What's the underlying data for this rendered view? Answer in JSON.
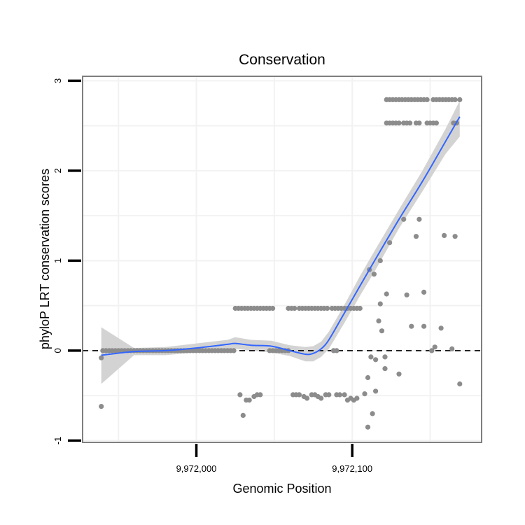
{
  "chart_data": {
    "type": "scatter",
    "title": "Conservation",
    "xlabel": "Genomic Position",
    "ylabel": "phyloP LRT conservation scores",
    "xlim": [
      9971927,
      9972183
    ],
    "ylim": [
      -1.02,
      3.05
    ],
    "x_ticks": [
      9972000,
      9972100
    ],
    "x_tick_labels": [
      "9,972,000",
      "9,972,100"
    ],
    "y_ticks": [
      -1,
      0,
      1,
      2,
      3
    ],
    "y_tick_labels": [
      "-1",
      "0",
      "1",
      "2",
      "3"
    ],
    "x_minor_grid": [
      9971950,
      9972050,
      9972150
    ],
    "y_minor_grid": [
      -0.5,
      0.5,
      1.5,
      2.5
    ],
    "grid": true,
    "reference_line": {
      "y": 0,
      "style": "dashed"
    },
    "colors": {
      "points": "#8c8c8c",
      "smooth_line": "#3366ff",
      "confidence_band": "#d3d3d3",
      "panel_border": "#7f7f7f",
      "grid": "#f2f2f2"
    },
    "points": [
      [
        9971939,
        -0.62
      ],
      [
        9971939,
        -0.08
      ],
      [
        9971940,
        0
      ],
      [
        9971942,
        0
      ],
      [
        9971944,
        0
      ],
      [
        9971946,
        0
      ],
      [
        9971948,
        0
      ],
      [
        9971950,
        0
      ],
      [
        9971952,
        0
      ],
      [
        9971954,
        0
      ],
      [
        9971956,
        0
      ],
      [
        9971958,
        0
      ],
      [
        9971960,
        0
      ],
      [
        9971962,
        0
      ],
      [
        9971964,
        0
      ],
      [
        9971966,
        0
      ],
      [
        9971968,
        0
      ],
      [
        9971970,
        0
      ],
      [
        9971972,
        0
      ],
      [
        9971974,
        0
      ],
      [
        9971976,
        0
      ],
      [
        9971978,
        0
      ],
      [
        9971980,
        0
      ],
      [
        9971982,
        0
      ],
      [
        9971984,
        0
      ],
      [
        9971986,
        0
      ],
      [
        9971988,
        0
      ],
      [
        9971990,
        0
      ],
      [
        9971992,
        0
      ],
      [
        9971994,
        0
      ],
      [
        9971996,
        0
      ],
      [
        9971998,
        0
      ],
      [
        9972000,
        0
      ],
      [
        9972002,
        0
      ],
      [
        9972004,
        0
      ],
      [
        9972006,
        0
      ],
      [
        9972008,
        0
      ],
      [
        9972010,
        0
      ],
      [
        9972012,
        0
      ],
      [
        9972014,
        0
      ],
      [
        9972016,
        0
      ],
      [
        9972018,
        0
      ],
      [
        9972020,
        0
      ],
      [
        9972022,
        0
      ],
      [
        9972024,
        0
      ],
      [
        9972025,
        0.47
      ],
      [
        9972027,
        0.47
      ],
      [
        9972029,
        0.47
      ],
      [
        9972031,
        0.47
      ],
      [
        9972033,
        0.47
      ],
      [
        9972035,
        0.47
      ],
      [
        9972037,
        0.47
      ],
      [
        9972039,
        0.47
      ],
      [
        9972041,
        0.47
      ],
      [
        9972043,
        0.47
      ],
      [
        9972045,
        0.47
      ],
      [
        9972047,
        0.47
      ],
      [
        9972049,
        0.47
      ],
      [
        9972028,
        -0.49
      ],
      [
        9972030,
        -0.72
      ],
      [
        9972032,
        -0.55
      ],
      [
        9972034,
        -0.55
      ],
      [
        9972037,
        -0.51
      ],
      [
        9972039,
        -0.49
      ],
      [
        9972041,
        -0.49
      ],
      [
        9972047,
        0
      ],
      [
        9972049,
        0
      ],
      [
        9972051,
        0
      ],
      [
        9972053,
        0
      ],
      [
        9972055,
        0
      ],
      [
        9972057,
        0
      ],
      [
        9972059,
        0
      ],
      [
        9972059,
        0.47
      ],
      [
        9972061,
        0.47
      ],
      [
        9972063,
        0.47
      ],
      [
        9972066,
        0.47
      ],
      [
        9972068,
        0.47
      ],
      [
        9972070,
        0.47
      ],
      [
        9972072,
        0.47
      ],
      [
        9972074,
        0.47
      ],
      [
        9972076,
        0.47
      ],
      [
        9972078,
        0.47
      ],
      [
        9972080,
        0.47
      ],
      [
        9972082,
        0.47
      ],
      [
        9972084,
        0.47
      ],
      [
        9972087,
        0.47
      ],
      [
        9972089,
        0.47
      ],
      [
        9972091,
        0.47
      ],
      [
        9972093,
        0.47
      ],
      [
        9972095,
        0.47
      ],
      [
        9972097,
        0.47
      ],
      [
        9972099,
        0.47
      ],
      [
        9972101,
        0.47
      ],
      [
        9972103,
        0.47
      ],
      [
        9972105,
        0.47
      ],
      [
        9972062,
        -0.49
      ],
      [
        9972064,
        -0.49
      ],
      [
        9972066,
        -0.49
      ],
      [
        9972069,
        -0.51
      ],
      [
        9972071,
        -0.53
      ],
      [
        9972074,
        -0.49
      ],
      [
        9972076,
        -0.49
      ],
      [
        9972078,
        -0.51
      ],
      [
        9972080,
        -0.53
      ],
      [
        9972083,
        -0.49
      ],
      [
        9972085,
        -0.49
      ],
      [
        9972090,
        -0.49
      ],
      [
        9972092,
        -0.49
      ],
      [
        9972095,
        -0.49
      ],
      [
        9972097,
        -0.55
      ],
      [
        9972099,
        -0.53
      ],
      [
        9972101,
        -0.55
      ],
      [
        9972103,
        -0.53
      ],
      [
        9972088,
        0
      ],
      [
        9972090,
        0
      ],
      [
        9972108,
        -0.48
      ],
      [
        9972110,
        -0.3
      ],
      [
        9972110,
        -0.85
      ],
      [
        9972111,
        0.9
      ],
      [
        9972112,
        -0.07
      ],
      [
        9972113,
        -0.7
      ],
      [
        9972114,
        0.85
      ],
      [
        9972115,
        -0.45
      ],
      [
        9972115,
        -0.1
      ],
      [
        9972117,
        0.33
      ],
      [
        9972118,
        1.0
      ],
      [
        9972118,
        0.52
      ],
      [
        9972119,
        0.22
      ],
      [
        9972121,
        -0.07
      ],
      [
        9972121,
        -0.2
      ],
      [
        9972122,
        0.63
      ],
      [
        9972124,
        1.2
      ],
      [
        9972130,
        -0.26
      ],
      [
        9972133,
        1.46
      ],
      [
        9972135,
        0.62
      ],
      [
        9972138,
        0.27
      ],
      [
        9972141,
        1.27
      ],
      [
        9972143,
        1.46
      ],
      [
        9972146,
        0.27
      ],
      [
        9972146,
        0.65
      ],
      [
        9972151,
        0
      ],
      [
        9972153,
        0.04
      ],
      [
        9972157,
        0.25
      ],
      [
        9972159,
        1.28
      ],
      [
        9972164,
        0.02
      ],
      [
        9972166,
        1.27
      ],
      [
        9972169,
        -0.37
      ],
      [
        9972122,
        2.79
      ],
      [
        9972124,
        2.79
      ],
      [
        9972126,
        2.79
      ],
      [
        9972128,
        2.79
      ],
      [
        9972130,
        2.79
      ],
      [
        9972132,
        2.79
      ],
      [
        9972134,
        2.79
      ],
      [
        9972136,
        2.79
      ],
      [
        9972138,
        2.79
      ],
      [
        9972140,
        2.79
      ],
      [
        9972142,
        2.79
      ],
      [
        9972144,
        2.79
      ],
      [
        9972146,
        2.79
      ],
      [
        9972148,
        2.79
      ],
      [
        9972152,
        2.79
      ],
      [
        9972154,
        2.79
      ],
      [
        9972156,
        2.79
      ],
      [
        9972158,
        2.79
      ],
      [
        9972160,
        2.79
      ],
      [
        9972162,
        2.79
      ],
      [
        9972164,
        2.79
      ],
      [
        9972166,
        2.79
      ],
      [
        9972169,
        2.79
      ],
      [
        9972122,
        2.53
      ],
      [
        9972124,
        2.53
      ],
      [
        9972126,
        2.53
      ],
      [
        9972128,
        2.53
      ],
      [
        9972130,
        2.53
      ],
      [
        9972133,
        2.53
      ],
      [
        9972135,
        2.53
      ],
      [
        9972137,
        2.53
      ],
      [
        9972141,
        2.53
      ],
      [
        9972143,
        2.53
      ],
      [
        9972148,
        2.53
      ],
      [
        9972150,
        2.53
      ],
      [
        9972152,
        2.53
      ],
      [
        9972154,
        2.53
      ],
      [
        9972165,
        2.53
      ],
      [
        9972167,
        2.53
      ]
    ],
    "smooth": {
      "x": [
        9971939,
        9971960,
        9971980,
        9972000,
        9972020,
        9972025,
        9972035,
        9972048,
        9972060,
        9972070,
        9972075,
        9972080,
        9972085,
        9972095,
        9972105,
        9972115,
        9972130,
        9972145,
        9972160,
        9972169
      ],
      "y": [
        -0.05,
        -0.01,
        0.0,
        0.03,
        0.07,
        0.08,
        0.06,
        0.05,
        0.0,
        -0.04,
        -0.03,
        0.02,
        0.12,
        0.42,
        0.72,
        1.02,
        1.46,
        1.88,
        2.33,
        2.6
      ],
      "lower": [
        -0.37,
        -0.05,
        -0.05,
        -0.02,
        0.02,
        0.02,
        0.0,
        -0.02,
        -0.06,
        -0.12,
        -0.12,
        -0.07,
        0.02,
        0.31,
        0.61,
        0.9,
        1.36,
        1.77,
        2.19,
        2.38
      ],
      "upper": [
        0.26,
        0.03,
        0.04,
        0.08,
        0.12,
        0.15,
        0.12,
        0.11,
        0.06,
        0.04,
        0.05,
        0.1,
        0.21,
        0.51,
        0.83,
        1.13,
        1.57,
        2.0,
        2.47,
        2.78
      ]
    }
  }
}
